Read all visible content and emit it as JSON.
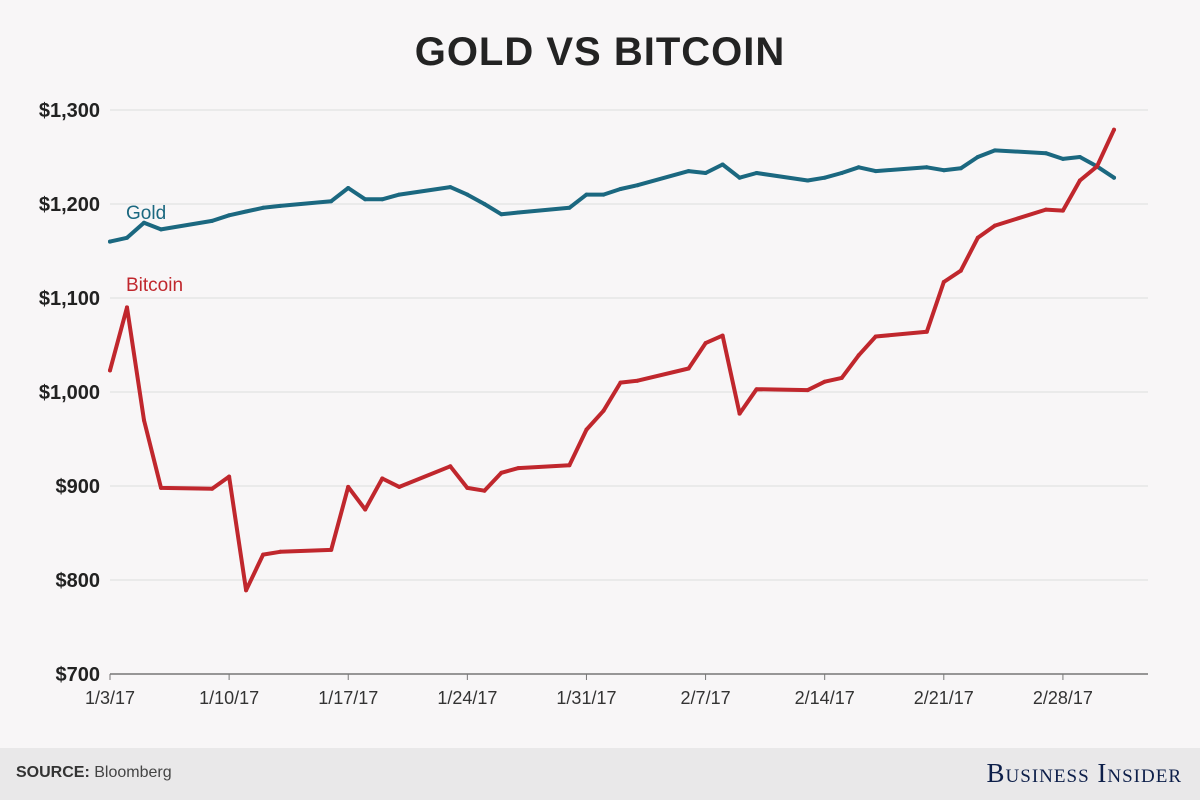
{
  "page": {
    "title": "GOLD VS BITCOIN"
  },
  "footer": {
    "source_label": "SOURCE:",
    "source_name": "Bloomberg",
    "brand": "Business Insider"
  },
  "colors": {
    "gold": "#1b6880",
    "bitcoin": "#c0272d",
    "grid": "#dddddd",
    "background": "#f8f6f7"
  },
  "chart_data": {
    "type": "line",
    "title": "GOLD VS BITCOIN",
    "xlabel": "",
    "ylabel": "",
    "ylim": [
      700,
      1300
    ],
    "yticks": [
      700,
      800,
      900,
      1000,
      1100,
      1200,
      1300
    ],
    "ytick_labels": [
      "$700",
      "$800",
      "$900",
      "$1,000",
      "$1,100",
      "$1,200",
      "$1,300"
    ],
    "xticks": [
      {
        "date": "2017-01-03",
        "label": "1/3/17"
      },
      {
        "date": "2017-01-10",
        "label": "1/10/17"
      },
      {
        "date": "2017-01-17",
        "label": "1/17/17"
      },
      {
        "date": "2017-01-24",
        "label": "1/24/17"
      },
      {
        "date": "2017-01-31",
        "label": "1/31/17"
      },
      {
        "date": "2017-02-07",
        "label": "2/7/17"
      },
      {
        "date": "2017-02-14",
        "label": "2/14/17"
      },
      {
        "date": "2017-02-21",
        "label": "2/21/17"
      },
      {
        "date": "2017-02-28",
        "label": "2/28/17"
      }
    ],
    "xlim": [
      "2017-01-03",
      "2017-03-05"
    ],
    "grid": true,
    "series": [
      {
        "name": "Gold",
        "color": "#1b6880",
        "points": [
          [
            "2017-01-03",
            1160
          ],
          [
            "2017-01-04",
            1164
          ],
          [
            "2017-01-05",
            1180
          ],
          [
            "2017-01-06",
            1173
          ],
          [
            "2017-01-09",
            1182
          ],
          [
            "2017-01-10",
            1188
          ],
          [
            "2017-01-11",
            1192
          ],
          [
            "2017-01-12",
            1196
          ],
          [
            "2017-01-13",
            1198
          ],
          [
            "2017-01-16",
            1203
          ],
          [
            "2017-01-17",
            1217
          ],
          [
            "2017-01-18",
            1205
          ],
          [
            "2017-01-19",
            1205
          ],
          [
            "2017-01-20",
            1210
          ],
          [
            "2017-01-23",
            1218
          ],
          [
            "2017-01-24",
            1210
          ],
          [
            "2017-01-25",
            1200
          ],
          [
            "2017-01-26",
            1189
          ],
          [
            "2017-01-27",
            1191
          ],
          [
            "2017-01-30",
            1196
          ],
          [
            "2017-01-31",
            1210
          ],
          [
            "2017-02-01",
            1210
          ],
          [
            "2017-02-02",
            1216
          ],
          [
            "2017-02-03",
            1220
          ],
          [
            "2017-02-06",
            1235
          ],
          [
            "2017-02-07",
            1233
          ],
          [
            "2017-02-08",
            1242
          ],
          [
            "2017-02-09",
            1228
          ],
          [
            "2017-02-10",
            1233
          ],
          [
            "2017-02-13",
            1225
          ],
          [
            "2017-02-14",
            1228
          ],
          [
            "2017-02-15",
            1233
          ],
          [
            "2017-02-16",
            1239
          ],
          [
            "2017-02-17",
            1235
          ],
          [
            "2017-02-20",
            1239
          ],
          [
            "2017-02-21",
            1236
          ],
          [
            "2017-02-22",
            1238
          ],
          [
            "2017-02-23",
            1250
          ],
          [
            "2017-02-24",
            1257
          ],
          [
            "2017-02-27",
            1254
          ],
          [
            "2017-02-28",
            1248
          ],
          [
            "2017-03-01",
            1250
          ],
          [
            "2017-03-02",
            1240
          ],
          [
            "2017-03-03",
            1228
          ]
        ]
      },
      {
        "name": "Bitcoin",
        "color": "#c0272d",
        "points": [
          [
            "2017-01-03",
            1023
          ],
          [
            "2017-01-04",
            1090
          ],
          [
            "2017-01-05",
            970
          ],
          [
            "2017-01-06",
            898
          ],
          [
            "2017-01-09",
            897
          ],
          [
            "2017-01-10",
            910
          ],
          [
            "2017-01-11",
            789
          ],
          [
            "2017-01-12",
            827
          ],
          [
            "2017-01-13",
            830
          ],
          [
            "2017-01-16",
            832
          ],
          [
            "2017-01-17",
            899
          ],
          [
            "2017-01-18",
            875
          ],
          [
            "2017-01-19",
            908
          ],
          [
            "2017-01-20",
            899
          ],
          [
            "2017-01-23",
            921
          ],
          [
            "2017-01-24",
            898
          ],
          [
            "2017-01-25",
            895
          ],
          [
            "2017-01-26",
            914
          ],
          [
            "2017-01-27",
            919
          ],
          [
            "2017-01-30",
            922
          ],
          [
            "2017-01-31",
            960
          ],
          [
            "2017-02-01",
            980
          ],
          [
            "2017-02-02",
            1010
          ],
          [
            "2017-02-03",
            1012
          ],
          [
            "2017-02-06",
            1025
          ],
          [
            "2017-02-07",
            1052
          ],
          [
            "2017-02-08",
            1060
          ],
          [
            "2017-02-09",
            977
          ],
          [
            "2017-02-10",
            1003
          ],
          [
            "2017-02-13",
            1002
          ],
          [
            "2017-02-14",
            1011
          ],
          [
            "2017-02-15",
            1015
          ],
          [
            "2017-02-16",
            1039
          ],
          [
            "2017-02-17",
            1059
          ],
          [
            "2017-02-20",
            1064
          ],
          [
            "2017-02-21",
            1117
          ],
          [
            "2017-02-22",
            1129
          ],
          [
            "2017-02-23",
            1164
          ],
          [
            "2017-02-24",
            1177
          ],
          [
            "2017-02-27",
            1194
          ],
          [
            "2017-02-28",
            1193
          ],
          [
            "2017-03-01",
            1225
          ],
          [
            "2017-03-02",
            1240
          ],
          [
            "2017-03-03",
            1279
          ]
        ]
      }
    ]
  }
}
